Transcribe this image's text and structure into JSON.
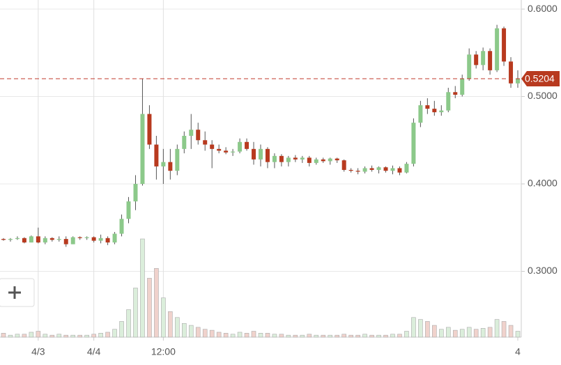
{
  "chart_data": {
    "type": "candlestick",
    "categories": [
      null,
      null,
      null,
      null,
      null,
      "4/3",
      null,
      null,
      null,
      null,
      null,
      null,
      null,
      "4/4",
      null,
      null,
      null,
      null,
      null,
      null,
      null,
      null,
      null,
      "12:00",
      null,
      null,
      null,
      null,
      null,
      null,
      null,
      null,
      null,
      null,
      null,
      null,
      null,
      null,
      null,
      null,
      null,
      null,
      null,
      null,
      null,
      null,
      null,
      null,
      null,
      null,
      null,
      null,
      null,
      null,
      null,
      null,
      null,
      null,
      null,
      null,
      null,
      null,
      null,
      null,
      null,
      null,
      null,
      null,
      null,
      null,
      null,
      null,
      null,
      null,
      "4"
    ],
    "open": [
      0.337,
      0.336,
      0.337,
      0.338,
      0.333,
      0.34,
      0.333,
      0.338,
      0.336,
      0.337,
      0.331,
      0.339,
      0.338,
      0.339,
      0.335,
      0.338,
      0.333,
      0.343,
      0.36,
      0.38,
      0.4,
      0.48,
      0.445,
      0.42,
      0.425,
      0.415,
      0.44,
      0.455,
      0.462,
      0.45,
      0.445,
      0.44,
      0.438,
      0.436,
      0.437,
      0.448,
      0.44,
      0.428,
      0.44,
      0.425,
      0.432,
      0.425,
      0.43,
      0.428,
      0.43,
      0.424,
      0.428,
      0.426,
      0.429,
      0.427,
      0.416,
      0.415,
      0.414,
      0.418,
      0.416,
      0.419,
      0.415,
      0.418,
      0.413,
      0.423,
      0.47,
      0.49,
      0.486,
      0.482,
      0.484,
      0.505,
      0.502,
      0.52,
      0.548,
      0.536,
      0.552,
      0.53,
      0.578,
      0.54,
      0.515
    ],
    "high": [
      0.338,
      0.338,
      0.34,
      0.339,
      0.341,
      0.35,
      0.34,
      0.339,
      0.34,
      0.34,
      0.34,
      0.34,
      0.34,
      0.34,
      0.342,
      0.34,
      0.345,
      0.365,
      0.385,
      0.41,
      0.52,
      0.49,
      0.455,
      0.44,
      0.44,
      0.445,
      0.46,
      0.48,
      0.47,
      0.46,
      0.45,
      0.445,
      0.442,
      0.44,
      0.452,
      0.452,
      0.448,
      0.445,
      0.442,
      0.435,
      0.434,
      0.432,
      0.433,
      0.432,
      0.432,
      0.43,
      0.43,
      0.43,
      0.43,
      0.428,
      0.418,
      0.418,
      0.42,
      0.421,
      0.42,
      0.42,
      0.421,
      0.42,
      0.425,
      0.475,
      0.495,
      0.498,
      0.495,
      0.49,
      0.51,
      0.512,
      0.525,
      0.555,
      0.552,
      0.556,
      0.555,
      0.582,
      0.58,
      0.545,
      0.53
    ],
    "low": [
      0.335,
      0.334,
      0.336,
      0.332,
      0.333,
      0.332,
      0.331,
      0.334,
      0.334,
      0.328,
      0.331,
      0.336,
      0.336,
      0.333,
      0.332,
      0.33,
      0.331,
      0.34,
      0.355,
      0.37,
      0.398,
      0.44,
      0.405,
      0.4,
      0.405,
      0.41,
      0.435,
      0.44,
      0.445,
      0.438,
      0.418,
      0.435,
      0.434,
      0.432,
      0.435,
      0.438,
      0.422,
      0.42,
      0.418,
      0.418,
      0.42,
      0.42,
      0.425,
      0.424,
      0.42,
      0.422,
      0.424,
      0.422,
      0.424,
      0.414,
      0.413,
      0.411,
      0.412,
      0.414,
      0.412,
      0.413,
      0.411,
      0.41,
      0.412,
      0.42,
      0.465,
      0.48,
      0.478,
      0.478,
      0.482,
      0.498,
      0.5,
      0.518,
      0.532,
      0.53,
      0.525,
      0.528,
      0.535,
      0.51,
      0.51
    ],
    "close": [
      0.336,
      0.337,
      0.338,
      0.333,
      0.34,
      0.333,
      0.338,
      0.336,
      0.337,
      0.331,
      0.339,
      0.338,
      0.339,
      0.335,
      0.338,
      0.333,
      0.343,
      0.36,
      0.38,
      0.4,
      0.48,
      0.445,
      0.42,
      0.425,
      0.415,
      0.44,
      0.455,
      0.462,
      0.45,
      0.445,
      0.44,
      0.438,
      0.436,
      0.437,
      0.448,
      0.44,
      0.428,
      0.44,
      0.425,
      0.432,
      0.425,
      0.43,
      0.428,
      0.43,
      0.424,
      0.428,
      0.426,
      0.429,
      0.427,
      0.416,
      0.415,
      0.414,
      0.418,
      0.416,
      0.419,
      0.415,
      0.418,
      0.413,
      0.423,
      0.47,
      0.49,
      0.486,
      0.482,
      0.484,
      0.505,
      0.502,
      0.52,
      0.548,
      0.536,
      0.552,
      0.53,
      0.578,
      0.54,
      0.515,
      0.5204
    ],
    "volume": [
      4,
      2,
      3,
      3,
      5,
      6,
      3,
      2,
      3,
      2,
      2,
      2,
      2,
      3,
      4,
      5,
      8,
      16,
      28,
      50,
      100,
      60,
      70,
      40,
      26,
      20,
      14,
      12,
      10,
      8,
      7,
      5,
      4,
      3,
      5,
      4,
      6,
      4,
      4,
      3,
      3,
      2,
      2,
      2,
      3,
      2,
      2,
      2,
      2,
      3,
      2,
      2,
      3,
      2,
      2,
      2,
      3,
      3,
      6,
      20,
      18,
      16,
      12,
      8,
      10,
      7,
      8,
      10,
      8,
      9,
      10,
      18,
      16,
      12,
      6
    ],
    "up_color": "#8cc98a",
    "down_color": "#b83a1f",
    "ylim": [
      0.2247,
      0.6104
    ],
    "yticks": [
      {
        "value": 0.3,
        "label": "0.3000"
      },
      {
        "value": 0.4,
        "label": "0.4000"
      },
      {
        "value": 0.5,
        "label": "0.5000"
      },
      {
        "value": 0.6,
        "label": "0.6000"
      }
    ],
    "y2lim": [
      0,
      100
    ],
    "last_price": {
      "value": 0.5204,
      "label": "0.5204"
    },
    "grid": true
  }
}
